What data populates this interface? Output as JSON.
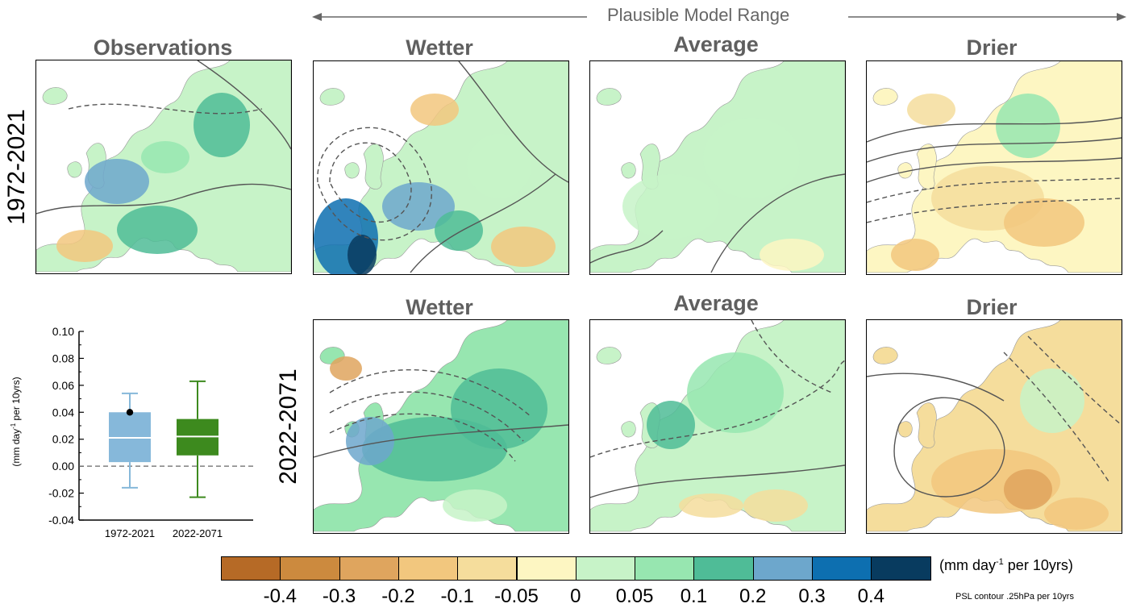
{
  "range": {
    "label": "Plausible Model Range"
  },
  "headers": {
    "observations": "Observations",
    "wetter_top": "Wetter",
    "average_top": "Average",
    "drier_top": "Drier",
    "wetter_bottom": "Wetter",
    "average_bottom": "Average",
    "drier_bottom": "Drier"
  },
  "row_labels": {
    "top": "1972-2021",
    "bottom": "2022-2071"
  },
  "colorbar": {
    "units_main": "(mm day",
    "units_sup": "-1",
    "units_tail": " per 10yrs)",
    "note": "PSL contour .25hPa per 10yrs",
    "colors": [
      "#b66a26",
      "#cc8a3e",
      "#dfa55e",
      "#f2c77e",
      "#f5dd9c",
      "#fdf6c2",
      "#c7f3c8",
      "#97e6b0",
      "#4fbc97",
      "#6da7cc",
      "#0d6fb0",
      "#083b5f"
    ],
    "ticks": [
      "-0.4",
      "-0.3",
      "-0.2",
      "-0.1",
      "-0.05",
      "0",
      "0.05",
      "0.1",
      "0.2",
      "0.3",
      "0.4"
    ]
  },
  "chart_data": {
    "type": "box",
    "title": "",
    "xlabel": "",
    "ylabel_main": "(mm day",
    "ylabel_sup": "-1",
    "ylabel_tail": " per 10yrs)",
    "ylim": [
      -0.04,
      0.1
    ],
    "yticks": [
      "-0.04",
      "-0.02",
      "0.00",
      "0.02",
      "0.04",
      "0.06",
      "0.08",
      "0.10"
    ],
    "categories": [
      "1972-2021",
      "2022-2071"
    ],
    "boxes": [
      {
        "name": "1972-2021",
        "whisker_low": -0.016,
        "q1": 0.003,
        "median": 0.021,
        "q3": 0.04,
        "whisker_high": 0.054,
        "color": "#86b8da",
        "observed": 0.04
      },
      {
        "name": "2022-2071",
        "whisker_low": -0.023,
        "q1": 0.008,
        "median": 0.022,
        "q3": 0.035,
        "whisker_high": 0.063,
        "color": "#3d8a1e"
      }
    ],
    "reference_line": 0.0
  },
  "colors": {
    "header_gray": "#5f5f5f",
    "contour": "#555555"
  }
}
